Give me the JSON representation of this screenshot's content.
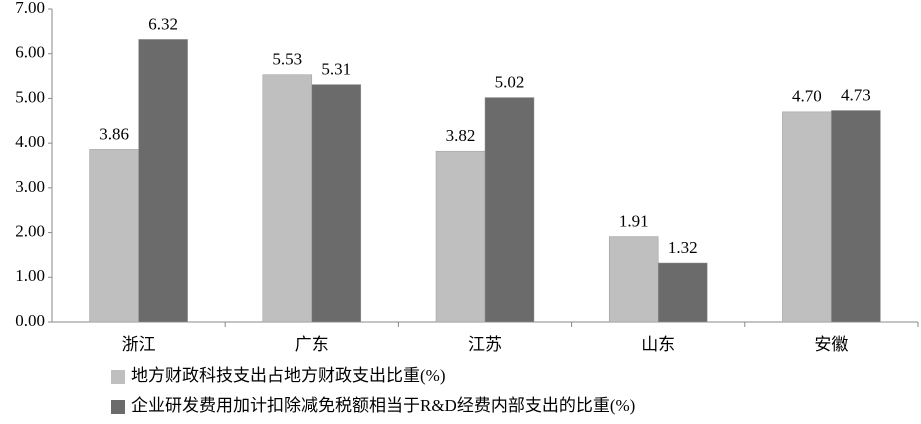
{
  "chart_data": {
    "type": "bar",
    "categories": [
      "浙江",
      "广东",
      "江苏",
      "山东",
      "安徽"
    ],
    "series": [
      {
        "name": "地方财政科技支出占地方财政支出比重(%)",
        "color": "#bfbfbf",
        "values": [
          3.86,
          5.53,
          3.82,
          1.91,
          4.7
        ],
        "value_labels": [
          "3.86",
          "5.53",
          "3.82",
          "1.91",
          "4.70"
        ]
      },
      {
        "name": "企业研发费用加计扣除减免税额相当于R&D经费内部支出的比重(%)",
        "color": "#6b6b6b",
        "values": [
          6.32,
          5.31,
          5.02,
          1.32,
          4.73
        ],
        "value_labels": [
          "6.32",
          "5.31",
          "5.02",
          "1.32",
          "4.73"
        ]
      }
    ],
    "ylim": [
      0,
      7
    ],
    "yticks": [
      {
        "value": 0,
        "label": "0.00"
      },
      {
        "value": 1,
        "label": "1.00"
      },
      {
        "value": 2,
        "label": "2.00"
      },
      {
        "value": 3,
        "label": "3.00"
      },
      {
        "value": 4,
        "label": "4.00"
      },
      {
        "value": 5,
        "label": "5.00"
      },
      {
        "value": 6,
        "label": "6.00"
      },
      {
        "value": 7,
        "label": "7.00"
      }
    ],
    "grid": false
  }
}
